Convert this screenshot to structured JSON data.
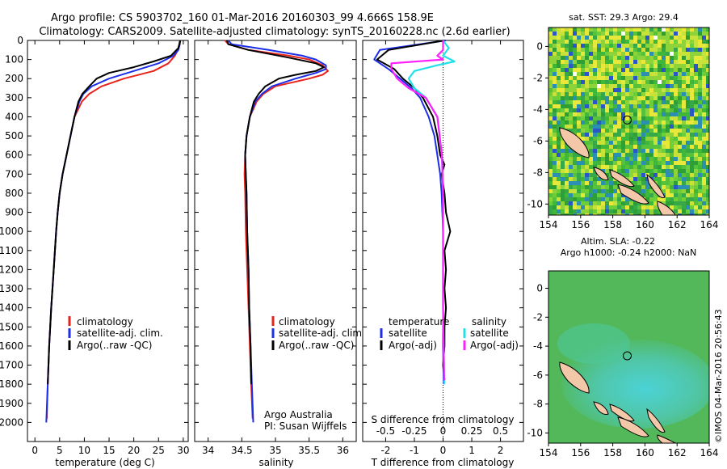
{
  "header": {
    "line1": "Argo profile: CS 5903702_160 01-Mar-2016 20160303_99 4.666S 158.9E",
    "line2": "Climatology: CARS2009. Satellite-adjusted climatology: synTS_20160228.nc (2.6d earlier)"
  },
  "colors": {
    "climatology": "#e8231c",
    "satellite": "#1c2ee8",
    "argo": "#000000",
    "argo_salinity_diff": "#ff1fff",
    "satellite_salinity_diff": "#22e0e8",
    "land": "#f2c8a8",
    "sst_green": "#3fb83a",
    "sla_green": "#52b85a",
    "sla_cyan": "#48d0c8"
  },
  "chart_data": [
    {
      "type": "line",
      "id": "temperature",
      "xlabel": "temperature (deg C)",
      "xlim": [
        -1.5,
        31
      ],
      "ylim": [
        2100,
        0
      ],
      "x_ticks": [
        0,
        5,
        10,
        15,
        20,
        25,
        30
      ],
      "y_ticks": [
        0,
        100,
        200,
        300,
        400,
        500,
        600,
        700,
        800,
        900,
        1000,
        1100,
        1200,
        1300,
        1400,
        1500,
        1600,
        1700,
        1800,
        1900,
        2000
      ],
      "legend": [
        "climatology",
        "satellite-adj. clim.",
        "Argo(..raw -QC)"
      ],
      "series": [
        {
          "name": "climatology",
          "depth": [
            0,
            20,
            50,
            80,
            120,
            160,
            200,
            240,
            280,
            320,
            400,
            500,
            600,
            700,
            800,
            900,
            1000,
            1200,
            1400,
            1600,
            1800,
            1980
          ],
          "values": [
            29.3,
            29.2,
            28.9,
            28.3,
            27.0,
            24.0,
            18.0,
            13.5,
            11.0,
            9.5,
            8.0,
            7.2,
            6.4,
            5.6,
            5.0,
            4.6,
            4.3,
            3.8,
            3.3,
            2.9,
            2.6,
            2.4
          ]
        },
        {
          "name": "satellite-adj. clim.",
          "depth": [
            0,
            20,
            50,
            80,
            120,
            160,
            200,
            240,
            280,
            320,
            400,
            500,
            600,
            700,
            800,
            900,
            1000,
            1200,
            1400,
            1600,
            1800,
            2000
          ],
          "values": [
            29.4,
            29.3,
            29.0,
            28.0,
            25.0,
            20.0,
            15.0,
            11.5,
            9.8,
            9.0,
            8.0,
            7.2,
            6.4,
            5.6,
            5.0,
            4.6,
            4.3,
            3.8,
            3.3,
            2.9,
            2.6,
            2.3
          ]
        },
        {
          "name": "Argo(..raw -QC)",
          "depth": [
            0,
            10,
            40,
            80,
            110,
            140,
            170,
            200,
            240,
            280,
            320,
            400,
            500,
            600,
            700,
            800,
            900,
            1000,
            1200,
            1400,
            1600,
            1800
          ],
          "values": [
            29.4,
            29.3,
            29.0,
            27.5,
            24.0,
            20.0,
            15.0,
            12.5,
            11.0,
            9.6,
            8.8,
            8.0,
            7.2,
            6.4,
            5.6,
            5.0,
            4.6,
            4.3,
            3.8,
            3.3,
            2.9,
            2.6
          ]
        }
      ]
    },
    {
      "type": "line",
      "id": "salinity",
      "xlabel": "salinity",
      "xlim": [
        33.8,
        36.2
      ],
      "ylim": [
        2100,
        0
      ],
      "x_ticks": [
        34,
        34.5,
        35,
        35.5,
        36
      ],
      "legend": [
        "climatology",
        "satellite-adj. clim.",
        "Argo(..raw -QC)"
      ],
      "annotation": [
        "Argo Australia",
        "PI: Susan Wijffels"
      ],
      "series": [
        {
          "name": "climatology",
          "depth": [
            0,
            20,
            50,
            80,
            100,
            130,
            160,
            180,
            200,
            240,
            280,
            320,
            400,
            500,
            600,
            700,
            800,
            1000,
            1200,
            1400,
            1600,
            1800,
            1980
          ],
          "values": [
            34.25,
            34.3,
            34.6,
            35.2,
            35.5,
            35.7,
            35.78,
            35.7,
            35.5,
            35.0,
            34.82,
            34.72,
            34.62,
            34.57,
            34.55,
            34.54,
            34.55,
            34.56,
            34.58,
            34.6,
            34.62,
            34.64,
            34.66
          ]
        },
        {
          "name": "satellite-adj. clim.",
          "depth": [
            0,
            20,
            50,
            80,
            100,
            130,
            150,
            170,
            200,
            240,
            280,
            320,
            400,
            500,
            600,
            700,
            800,
            1000,
            1200,
            1400,
            1600,
            1800,
            2000
          ],
          "values": [
            34.3,
            34.35,
            34.9,
            35.4,
            35.6,
            35.75,
            35.75,
            35.6,
            35.3,
            34.95,
            34.8,
            34.7,
            34.62,
            34.57,
            34.55,
            34.56,
            34.57,
            34.58,
            34.6,
            34.61,
            34.63,
            34.65,
            34.67
          ]
        },
        {
          "name": "Argo(..raw -QC)",
          "depth": [
            0,
            20,
            50,
            90,
            120,
            140,
            160,
            180,
            200,
            240,
            280,
            320,
            400,
            500,
            600,
            700,
            800,
            1000,
            1200,
            1400,
            1600,
            1800
          ],
          "values": [
            34.28,
            34.3,
            34.6,
            35.2,
            35.6,
            35.72,
            35.6,
            35.3,
            35.05,
            34.85,
            34.75,
            34.68,
            34.62,
            34.57,
            34.55,
            34.56,
            34.57,
            34.58,
            34.6,
            34.61,
            34.63,
            34.64
          ]
        }
      ]
    },
    {
      "type": "line",
      "id": "difference",
      "xlabel": "T difference from climatology",
      "top_label": "S difference from climatology",
      "xlim": [
        -2.8,
        2.8
      ],
      "ylim": [
        2100,
        0
      ],
      "x_ticks": [
        -2,
        -1,
        0,
        1,
        2
      ],
      "top_ticks": [
        -0.5,
        -0.25,
        0,
        0.25,
        0.5
      ],
      "legend_headers": [
        "temperature",
        "salinity"
      ],
      "legend": [
        "satellite",
        "Argo(-adj)",
        "satellite",
        "Argo(-adj)"
      ],
      "series": [
        {
          "name": "T satellite",
          "depth": [
            0,
            50,
            100,
            150,
            200,
            250,
            300,
            400,
            500,
            600,
            700,
            800,
            1000,
            1200,
            1400,
            1600,
            1800
          ],
          "values": [
            0.1,
            -2.2,
            -2.4,
            -1.9,
            -1.5,
            -1.1,
            -0.8,
            -0.5,
            -0.3,
            -0.2,
            -0.1,
            -0.05,
            0,
            0,
            0,
            0,
            0.02
          ]
        },
        {
          "name": "T Argo(-adj)",
          "depth": [
            0,
            50,
            100,
            150,
            200,
            250,
            300,
            400,
            500,
            600,
            650,
            700,
            800,
            900,
            1000,
            1100,
            1200,
            1300,
            1400,
            1500,
            1600,
            1700,
            1780
          ],
          "values": [
            0.05,
            -1.9,
            -2.3,
            -1.7,
            -1.4,
            -1.0,
            -0.7,
            -0.35,
            -0.2,
            -0.1,
            0.05,
            -0.05,
            0.05,
            0.1,
            0.25,
            0.05,
            0.1,
            0.05,
            0.1,
            0.05,
            0.05,
            0.0,
            0.05
          ]
        },
        {
          "name": "S satellite",
          "depth": [
            0,
            40,
            80,
            110,
            130,
            160,
            200,
            250,
            300,
            400,
            600,
            800,
            1000,
            1400,
            1800
          ],
          "values": [
            0.0,
            0.05,
            0.0,
            0.1,
            -0.05,
            -0.25,
            -0.3,
            -0.25,
            -0.15,
            -0.05,
            -0.01,
            0.0,
            0.0,
            0.0,
            0.01
          ]
        },
        {
          "name": "S Argo(-adj)",
          "depth": [
            0,
            50,
            80,
            100,
            120,
            150,
            200,
            250,
            300,
            400,
            600,
            800,
            1000,
            1400,
            1780
          ],
          "values": [
            0.0,
            0.0,
            -0.05,
            0.0,
            -0.45,
            -0.45,
            -0.4,
            -0.3,
            -0.15,
            -0.05,
            -0.01,
            0.0,
            0.0,
            0.0,
            0.01
          ]
        }
      ]
    }
  ],
  "maps": {
    "sst": {
      "title": "sat. SST: 29.3 Argo: 29.4",
      "x_ticks": [
        154,
        156,
        158,
        160,
        162,
        164
      ],
      "y_ticks": [
        0,
        -2,
        -4,
        -6,
        -8,
        -10
      ],
      "argo_lon": 158.9,
      "argo_lat": -4.666
    },
    "sla": {
      "title_line1": "Altim. SLA: -0.22",
      "title_line2": "Argo h1000: -0.24 h2000: NaN",
      "x_ticks": [
        154,
        156,
        158,
        160,
        162,
        164
      ],
      "y_ticks": [
        0,
        -2,
        -4,
        -6,
        -8,
        -10
      ],
      "argo_lon": 158.9,
      "argo_lat": -4.666
    },
    "credit": "©IMOS 04-Mar-2016 20:56:43"
  }
}
